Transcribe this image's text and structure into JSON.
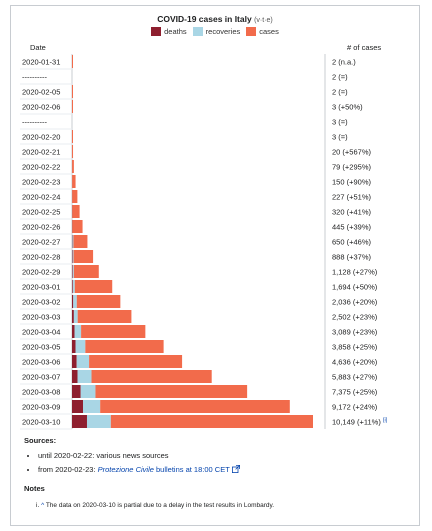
{
  "chart_data": {
    "type": "bar",
    "stacked": true,
    "orientation": "horizontal",
    "title": "COVID-19 cases in Italy",
    "title_links": "(v·t·e)",
    "legend_position": "top-center",
    "date_header": "Date",
    "cases_header": "# of cases",
    "series": [
      {
        "name": "deaths",
        "color": "#8e1f2f"
      },
      {
        "name": "recoveries",
        "color": "#a9d6e5"
      },
      {
        "name": "cases",
        "color": "#f26b4b"
      }
    ],
    "rows": [
      {
        "date": "2020-01-31",
        "deaths": 0,
        "recoveries": 0,
        "active": 2,
        "total": "2",
        "change": "(n.a.)"
      },
      {
        "date": "----------",
        "deaths": null,
        "recoveries": null,
        "active": null,
        "total": "2",
        "change": "(=)"
      },
      {
        "date": "2020-02-05",
        "deaths": 0,
        "recoveries": 0,
        "active": 2,
        "total": "2",
        "change": "(=)"
      },
      {
        "date": "2020-02-06",
        "deaths": 0,
        "recoveries": 0,
        "active": 3,
        "total": "3",
        "change": "(+50%)"
      },
      {
        "date": "----------",
        "deaths": null,
        "recoveries": null,
        "active": null,
        "total": "3",
        "change": "(=)"
      },
      {
        "date": "2020-02-20",
        "deaths": 0,
        "recoveries": 0,
        "active": 3,
        "total": "3",
        "change": "(=)"
      },
      {
        "date": "2020-02-21",
        "deaths": 1,
        "recoveries": 0,
        "active": 19,
        "total": "20",
        "change": "(+567%)"
      },
      {
        "date": "2020-02-22",
        "deaths": 2,
        "recoveries": 1,
        "active": 76,
        "total": "79",
        "change": "(+295%)"
      },
      {
        "date": "2020-02-23",
        "deaths": 3,
        "recoveries": 2,
        "active": 145,
        "total": "150",
        "change": "(+90%)"
      },
      {
        "date": "2020-02-24",
        "deaths": 7,
        "recoveries": 1,
        "active": 219,
        "total": "227",
        "change": "(+51%)"
      },
      {
        "date": "2020-02-25",
        "deaths": 10,
        "recoveries": 1,
        "active": 309,
        "total": "320",
        "change": "(+41%)"
      },
      {
        "date": "2020-02-26",
        "deaths": 12,
        "recoveries": 3,
        "active": 430,
        "total": "445",
        "change": "(+39%)"
      },
      {
        "date": "2020-02-27",
        "deaths": 17,
        "recoveries": 45,
        "active": 588,
        "total": "650",
        "change": "(+46%)"
      },
      {
        "date": "2020-02-28",
        "deaths": 21,
        "recoveries": 46,
        "active": 821,
        "total": "888",
        "change": "(+37%)"
      },
      {
        "date": "2020-02-29",
        "deaths": 29,
        "recoveries": 50,
        "active": 1049,
        "total": "1,128",
        "change": "(+27%)"
      },
      {
        "date": "2020-03-01",
        "deaths": 34,
        "recoveries": 83,
        "active": 1577,
        "total": "1,694",
        "change": "(+50%)"
      },
      {
        "date": "2020-03-02",
        "deaths": 52,
        "recoveries": 149,
        "active": 1835,
        "total": "2,036",
        "change": "(+20%)"
      },
      {
        "date": "2020-03-03",
        "deaths": 79,
        "recoveries": 160,
        "active": 2263,
        "total": "2,502",
        "change": "(+23%)"
      },
      {
        "date": "2020-03-04",
        "deaths": 107,
        "recoveries": 276,
        "active": 2706,
        "total": "3,089",
        "change": "(+23%)"
      },
      {
        "date": "2020-03-05",
        "deaths": 148,
        "recoveries": 414,
        "active": 3296,
        "total": "3,858",
        "change": "(+25%)"
      },
      {
        "date": "2020-03-06",
        "deaths": 197,
        "recoveries": 523,
        "active": 3916,
        "total": "4,636",
        "change": "(+20%)"
      },
      {
        "date": "2020-03-07",
        "deaths": 233,
        "recoveries": 589,
        "active": 5061,
        "total": "5,883",
        "change": "(+27%)"
      },
      {
        "date": "2020-03-08",
        "deaths": 366,
        "recoveries": 622,
        "active": 6387,
        "total": "7,375",
        "change": "(+25%)"
      },
      {
        "date": "2020-03-09",
        "deaths": 463,
        "recoveries": 724,
        "active": 7985,
        "total": "9,172",
        "change": "(+24%)"
      },
      {
        "date": "2020-03-10",
        "deaths": 631,
        "recoveries": 1004,
        "active": 8514,
        "total": "10,149",
        "change": "(+11%)",
        "note_ref": "[i]"
      }
    ],
    "xlim": [
      0,
      10149
    ]
  },
  "sources": {
    "heading": "Sources:",
    "items": [
      {
        "text": "until 2020-02-22: various news sources"
      },
      {
        "prefix": "from 2020-02-23: ",
        "link": "Protezione Civile",
        "suffix": " bulletins at 18:00 CET",
        "icon": "external-link-icon"
      }
    ]
  },
  "notes": {
    "heading": "Notes",
    "marker": "i.",
    "caret": "^",
    "text": "The data on 2020-03-10 is partial due to a delay in the test results in Lombardy."
  }
}
